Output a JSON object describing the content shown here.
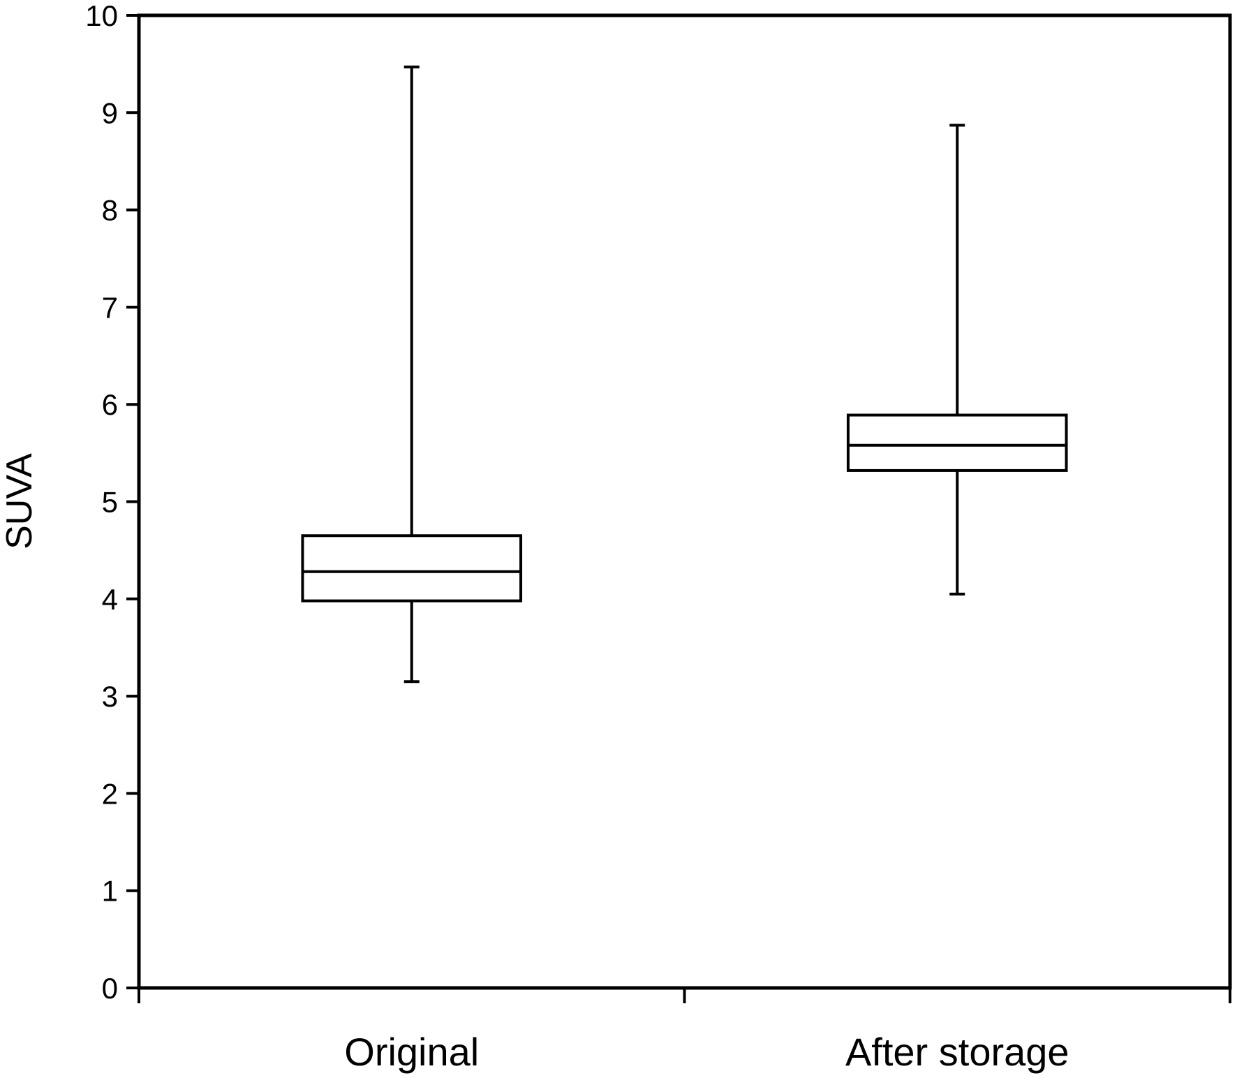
{
  "chart_data": {
    "type": "box",
    "title": "",
    "xlabel": "",
    "ylabel": "SUVA",
    "ylim": [
      0,
      10
    ],
    "yticks": [
      "0",
      "1",
      "2",
      "3",
      "4",
      "5",
      "6",
      "7",
      "8",
      "9",
      "10"
    ],
    "grid": false,
    "categories": [
      "Original",
      "After storage"
    ],
    "boxes": [
      {
        "category": "Original",
        "min": 3.15,
        "q1": 3.98,
        "median": 4.28,
        "q3": 4.65,
        "max": 9.47
      },
      {
        "category": "After storage",
        "min": 4.05,
        "q1": 5.32,
        "median": 5.58,
        "q3": 5.89,
        "max": 8.87
      }
    ],
    "colors": {
      "stroke": "#000000",
      "fill": "#ffffff"
    }
  }
}
